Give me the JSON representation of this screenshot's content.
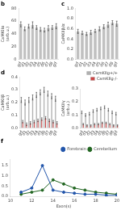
{
  "chart_data": [
    {
      "type": "bar",
      "title": "b",
      "ylabel": "CaMKIIα\n(arb.u.)",
      "categories": [
        "gd",
        "d1",
        "d2",
        "d3",
        "d4",
        "d5",
        "d6",
        "d7",
        "d8",
        "gd"
      ],
      "series": [
        {
          "color": "#c0c0c0",
          "values": [
            55,
            48,
            52,
            54,
            50,
            47,
            46,
            49,
            50,
            52
          ],
          "errors": [
            4,
            3,
            3,
            5,
            3,
            3,
            3,
            4,
            3,
            4
          ]
        }
      ],
      "ylim": [
        0,
        80
      ],
      "yticks": [
        0,
        20,
        40,
        60,
        80
      ],
      "grid": false
    },
    {
      "type": "bar",
      "title": "c",
      "ylabel": "CaMKIIβ/α",
      "categories": [
        "gd",
        "d1",
        "d2",
        "d3",
        "d4",
        "d5",
        "d6",
        "d7",
        "d8",
        "gd"
      ],
      "series": [
        {
          "color": "#c0c0c0",
          "values": [
            0.55,
            0.52,
            0.5,
            0.53,
            0.56,
            0.6,
            0.64,
            0.68,
            0.72,
            0.7
          ],
          "errors": [
            0.04,
            0.03,
            0.03,
            0.04,
            0.03,
            0.04,
            0.04,
            0.05,
            0.04,
            0.05
          ]
        }
      ],
      "ylim": [
        0,
        1.0
      ],
      "yticks": [
        {
          "value": 0,
          "label": "0.0"
        },
        0.2,
        0.4,
        0.6,
        0.8,
        {
          "value": 1.0,
          "label": "1.0"
        }
      ],
      "grid": false
    },
    {
      "type": "bar",
      "title": "d",
      "ylabel": "CaMKIIβ\n(arb.u.)",
      "categories": [
        "gd",
        "d1",
        "d2",
        "d3",
        "d4",
        "d5",
        "d6",
        "d7",
        "d8",
        "gd"
      ],
      "series": [
        {
          "color": "#b0b0b0",
          "values": [
            0.22,
            0.2,
            0.22,
            0.24,
            0.26,
            0.28,
            0.3,
            0.27,
            0.25,
            0.23
          ],
          "errors": [
            0.02,
            0.02,
            0.02,
            0.02,
            0.02,
            0.02,
            0.02,
            0.02,
            0.02,
            0.02
          ]
        },
        {
          "color": "#cc4444",
          "values": [
            0.05,
            0.03,
            0.04,
            0.05,
            0.06,
            0.07,
            0.08,
            0.06,
            0.05,
            0.04
          ],
          "errors": [
            0.01,
            0.01,
            0.01,
            0.01,
            0.01,
            0.01,
            0.01,
            0.01,
            0.01,
            0.01
          ]
        }
      ],
      "ylim": [
        0,
        0.4
      ],
      "yticks": [
        {
          "value": 0,
          "label": "0.0"
        },
        0.1,
        0.2,
        0.3,
        0.4
      ],
      "grid": false
    },
    {
      "type": "bar",
      "ylabel": "CaMKIIγ\n(arb.u.)",
      "categories": [
        "gd",
        "d1",
        "d2",
        "d3",
        "d4",
        "d5",
        "d6",
        "d7",
        "d8",
        "gd"
      ],
      "series": [
        {
          "name": "CamKIIg+/+",
          "color": "#b0b0b0",
          "values": [
            0.12,
            0.1,
            0.11,
            0.13,
            0.14,
            0.15,
            0.16,
            0.14,
            0.12,
            0.11
          ],
          "errors": [
            0.01,
            0.01,
            0.01,
            0.01,
            0.01,
            0.01,
            0.01,
            0.01,
            0.01,
            0.01
          ]
        },
        {
          "name": "CamKIIg-/-",
          "color": "#cc4444",
          "values": [
            0.03,
            0.02,
            0.02,
            0.03,
            0.03,
            0.04,
            0.04,
            0.03,
            0.02,
            0.02
          ],
          "errors": [
            0.005,
            0.005,
            0.005,
            0.005,
            0.005,
            0.005,
            0.005,
            0.005,
            0.005,
            0.005
          ]
        }
      ],
      "ylim": [
        0,
        0.3
      ],
      "yticks": [
        {
          "value": 0,
          "label": "0.0"
        },
        0.1,
        0.2,
        0.3
      ],
      "grid": false,
      "legend": "upper right"
    },
    {
      "type": "line",
      "title": "f",
      "xlabel": "Exon(s)",
      "x": [
        11,
        12,
        13,
        14,
        15,
        16,
        17,
        18,
        19,
        20
      ],
      "series": [
        {
          "name": "Forebrain",
          "color": "#2255aa",
          "marker": "circle",
          "values": [
            0.2,
            0.4,
            1.5,
            0.3,
            0.2,
            0.15,
            0.1,
            0.1,
            0.05,
            0.05
          ]
        },
        {
          "name": "Cerebellum",
          "color": "#226622",
          "marker": "circle",
          "values": [
            0.1,
            0.2,
            0.3,
            0.8,
            0.6,
            0.4,
            0.3,
            0.2,
            0.15,
            0.1
          ]
        }
      ],
      "xlim": [
        10,
        20
      ],
      "xticks": [
        10,
        12,
        14,
        16,
        18,
        20
      ],
      "ylim": [
        0,
        1.8
      ],
      "yticks": [
        {
          "value": 0,
          "label": "0.0"
        },
        0.5,
        {
          "value": 1.0,
          "label": "1.0"
        },
        1.5
      ],
      "grid": false,
      "legend": "upper right"
    }
  ]
}
